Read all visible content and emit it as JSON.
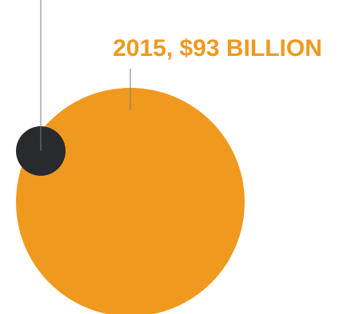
{
  "chart_data": {
    "type": "bubble",
    "bubbles": [
      {
        "label": "2015, $93 BILLION",
        "year": 2015,
        "value": 93,
        "unit": "billion USD",
        "color": "#f0991f"
      },
      {
        "label": "",
        "year": null,
        "value": null,
        "unit": "billion USD",
        "color": "#272b2d"
      }
    ],
    "label_color": "#f0991f",
    "leader_line_color": "#7a7a7a",
    "background": "#ffffff"
  }
}
